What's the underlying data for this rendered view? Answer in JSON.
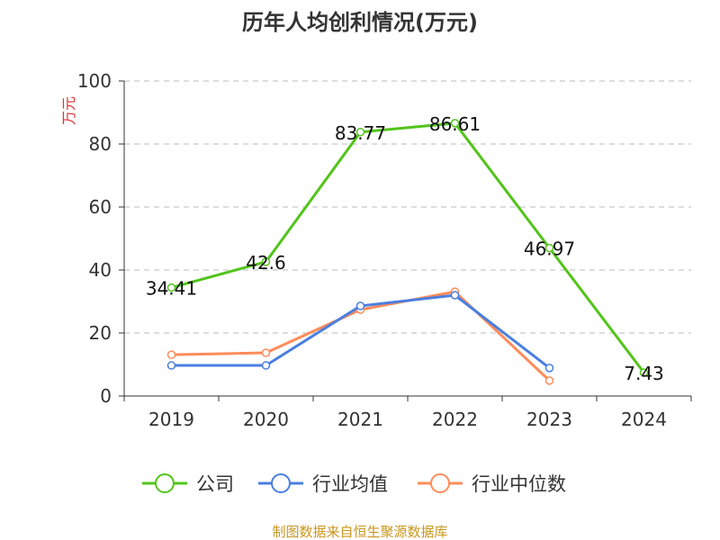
{
  "chart_data": {
    "type": "line",
    "title": "历年人均创利情况(万元)",
    "ylabel": "万元",
    "ylim": [
      0,
      100
    ],
    "yticks": [
      0,
      20,
      40,
      60,
      80,
      100
    ],
    "grid": true,
    "legend_placement": "bottom",
    "categories": [
      "2019",
      "2020",
      "2021",
      "2022",
      "2023",
      "2024"
    ],
    "series": [
      {
        "name": "公司",
        "color": "#52c41a",
        "values": [
          34.41,
          42.6,
          83.77,
          86.61,
          46.97,
          7.43
        ],
        "labels": [
          "34.41",
          "42.6",
          "83.77",
          "86.61",
          "46.97",
          "7.43"
        ]
      },
      {
        "name": "行业均值",
        "color": "#4a7fe0",
        "values": [
          9.7,
          9.7,
          28.6,
          32.0,
          8.9,
          null
        ]
      },
      {
        "name": "行业中位数",
        "color": "#ff8c5a",
        "values": [
          13.1,
          13.7,
          27.4,
          33.1,
          4.9,
          null
        ]
      }
    ]
  },
  "footer": "制图数据来自恒生聚源数据库"
}
